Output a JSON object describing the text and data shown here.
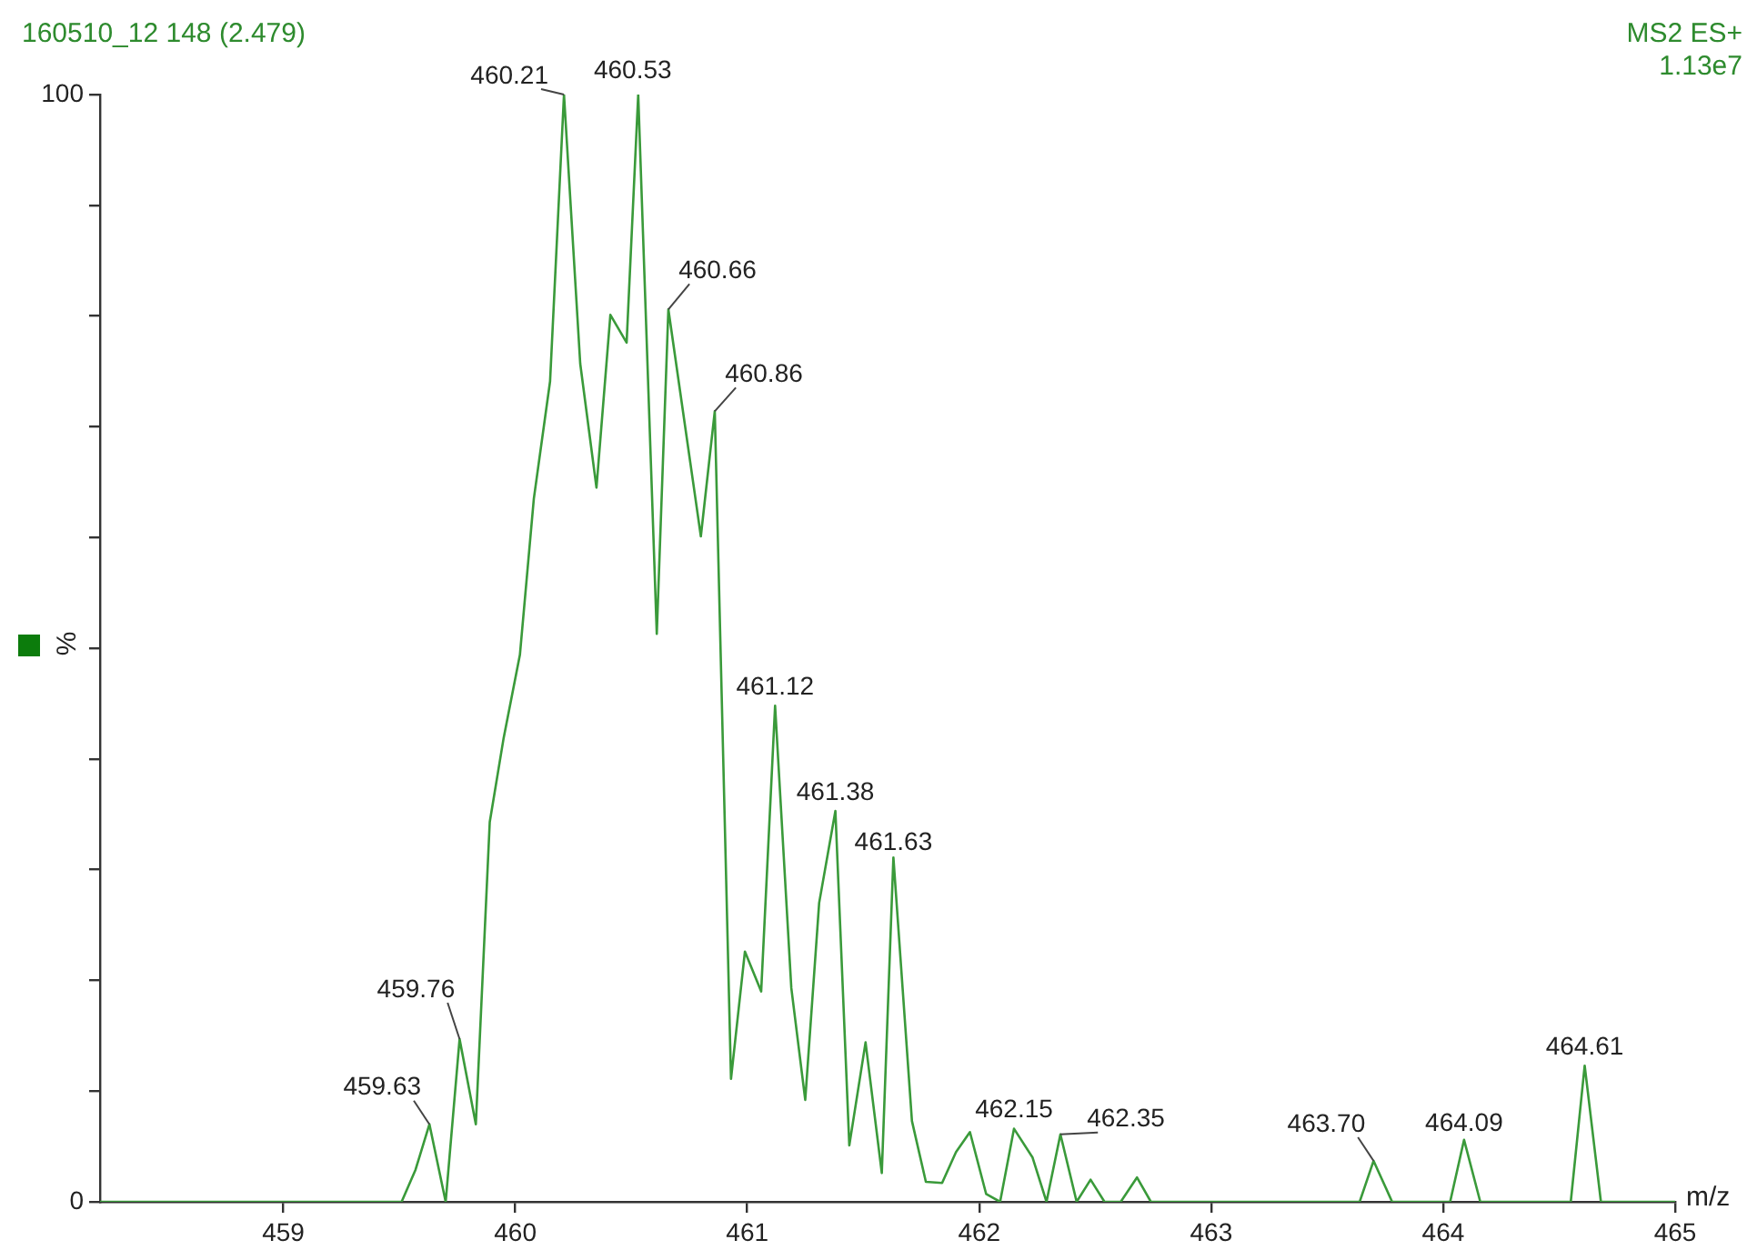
{
  "chart_data": {
    "type": "line",
    "title": "160510_12 148 (2.479)",
    "xlabel": "m/z",
    "ylabel": "%",
    "annotations": [
      "MS2 ES+",
      "1.13e7",
      {
        "text": "459.63",
        "x": 459.63,
        "y": 7.0
      },
      {
        "text": "459.76",
        "x": 459.76,
        "y": 14.7
      },
      {
        "text": "460.21",
        "x": 460.21,
        "y": 100
      },
      {
        "text": "460.53",
        "x": 460.53,
        "y": 100
      },
      {
        "text": "460.66",
        "x": 460.66,
        "y": 80.6
      },
      {
        "text": "460.86",
        "x": 460.86,
        "y": 71.4
      },
      {
        "text": "461.12",
        "x": 461.12,
        "y": 44.8
      },
      {
        "text": "461.38",
        "x": 461.38,
        "y": 35.3
      },
      {
        "text": "461.63",
        "x": 461.63,
        "y": 31.1
      },
      {
        "text": "462.15",
        "x": 462.15,
        "y": 6.6
      },
      {
        "text": "462.35",
        "x": 462.35,
        "y": 6.1
      },
      {
        "text": "463.70",
        "x": 463.7,
        "y": 3.7
      },
      {
        "text": "464.09",
        "x": 464.09,
        "y": 5.6
      },
      {
        "text": "464.61",
        "x": 464.61,
        "y": 12.3
      }
    ],
    "x": [
      458.21,
      459.51,
      459.57,
      459.63,
      459.7,
      459.76,
      459.83,
      459.89,
      459.95,
      460.02,
      460.08,
      460.15,
      460.21,
      460.28,
      460.35,
      460.41,
      460.48,
      460.53,
      460.61,
      460.66,
      460.8,
      460.86,
      460.93,
      460.99,
      461.06,
      461.12,
      461.19,
      461.25,
      461.31,
      461.38,
      461.44,
      461.51,
      461.58,
      461.63,
      461.71,
      461.77,
      461.84,
      461.9,
      461.96,
      462.03,
      462.09,
      462.15,
      462.23,
      462.29,
      462.35,
      462.42,
      462.48,
      462.54,
      462.61,
      462.68,
      462.74,
      463.64,
      463.7,
      463.78,
      464.03,
      464.09,
      464.16,
      464.55,
      464.61,
      464.68,
      465.0
    ],
    "series": [
      {
        "color": "#3a9a3a",
        "values": [
          0,
          0,
          2.9,
          7.0,
          0,
          14.7,
          7.0,
          34.3,
          41.9,
          49.4,
          63.5,
          74.1,
          100,
          75.7,
          64.5,
          80.1,
          77.6,
          100,
          51.3,
          80.6,
          60.1,
          71.4,
          11.1,
          22.6,
          19.0,
          44.8,
          19.3,
          9.2,
          27.0,
          35.3,
          5.1,
          14.4,
          2.6,
          31.1,
          7.3,
          1.8,
          1.7,
          4.5,
          6.3,
          0.7,
          0,
          6.6,
          4.0,
          0,
          6.1,
          0,
          2.0,
          0,
          0,
          2.2,
          0,
          0,
          3.7,
          0,
          0,
          5.6,
          0,
          0,
          12.3,
          0,
          0
        ]
      }
    ],
    "xlim": [
      458.21,
      465
    ],
    "ylim": [
      0,
      100
    ],
    "xticks": [
      459,
      460,
      461,
      462,
      463,
      464,
      465
    ],
    "yticks": [
      0,
      {
        "value": 10,
        "label": null
      },
      {
        "value": 20,
        "label": null
      },
      {
        "value": 30,
        "label": null
      },
      {
        "value": 40,
        "label": null
      },
      {
        "value": 50,
        "label": null
      },
      {
        "value": 60,
        "label": null
      },
      {
        "value": 70,
        "label": null
      },
      {
        "value": 80,
        "label": null
      },
      {
        "value": 90,
        "label": null
      },
      100
    ],
    "marker": "none",
    "line_style": "solid"
  }
}
